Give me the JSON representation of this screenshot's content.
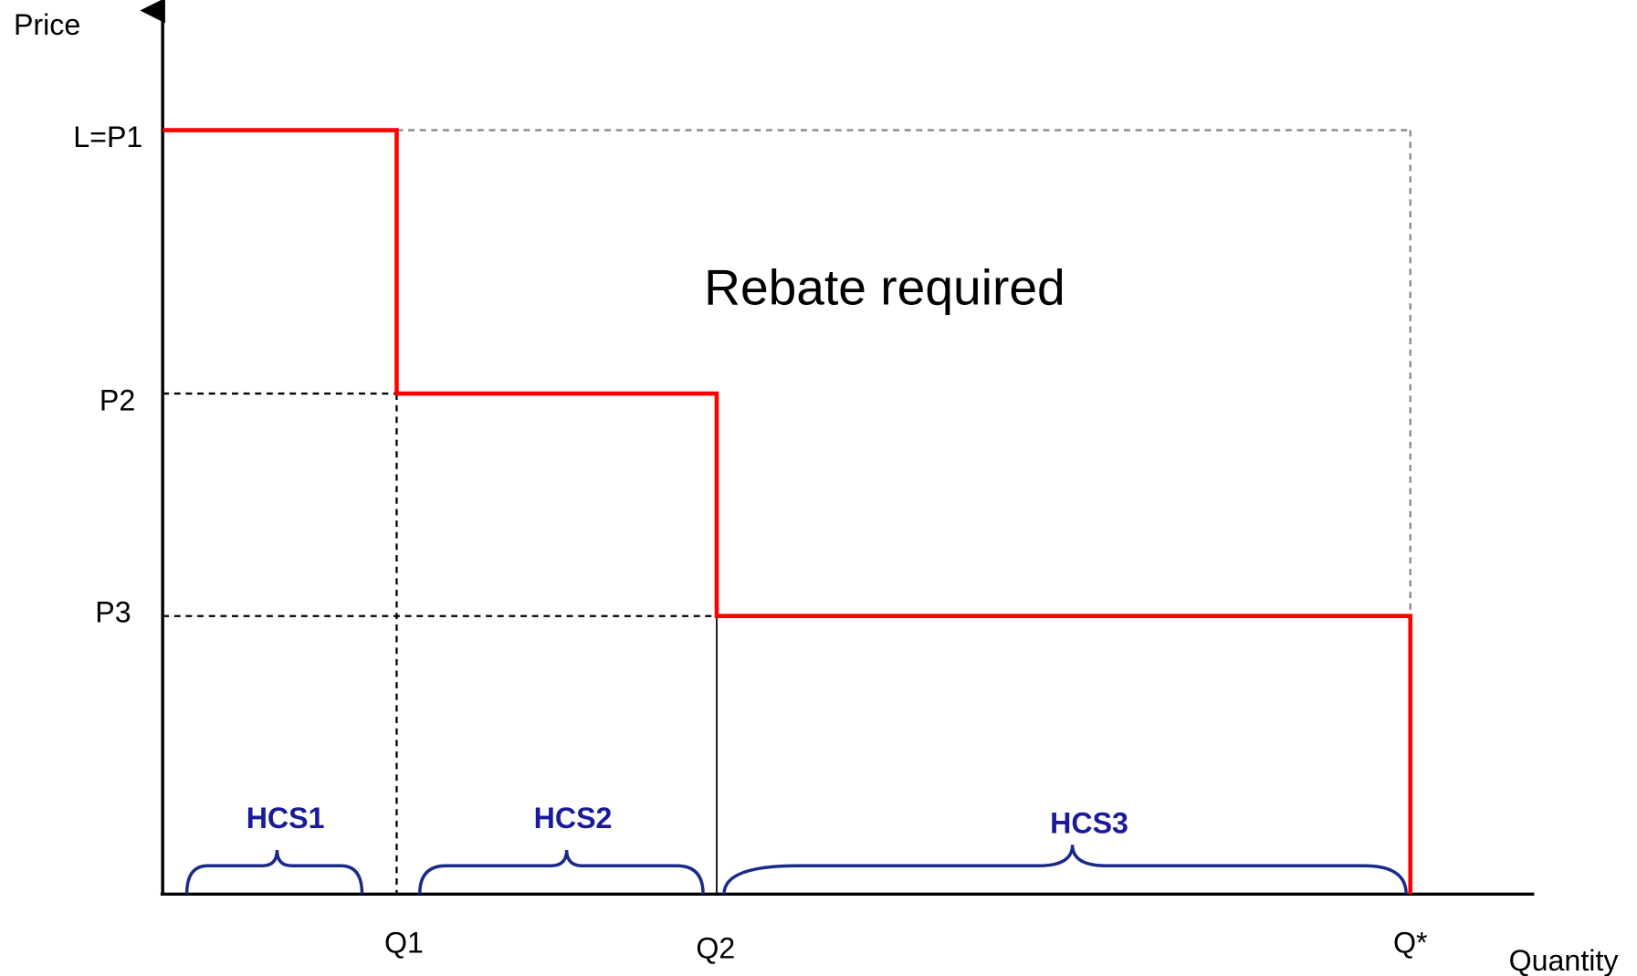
{
  "axes": {
    "y_label": "Price",
    "x_label": "Quantity"
  },
  "price_levels": [
    "L=P1",
    "P2",
    "P3"
  ],
  "quantity_levels": [
    "Q1",
    "Q2",
    "Q*"
  ],
  "annotation": "Rebate required",
  "segments": [
    "HCS1",
    "HCS2",
    "HCS3"
  ]
}
